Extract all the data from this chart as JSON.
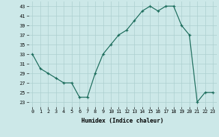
{
  "x": [
    0,
    1,
    2,
    3,
    4,
    5,
    6,
    7,
    8,
    9,
    10,
    11,
    12,
    13,
    14,
    15,
    16,
    17,
    18,
    19,
    20,
    21,
    22,
    23
  ],
  "y": [
    33,
    30,
    29,
    28,
    27,
    27,
    24,
    24,
    29,
    33,
    35,
    37,
    38,
    40,
    42,
    43,
    42,
    43,
    43,
    39,
    37,
    23,
    25,
    25
  ],
  "xlabel": "Humidex (Indice chaleur)",
  "xlim": [
    -0.5,
    23.5
  ],
  "ylim": [
    22,
    44
  ],
  "yticks": [
    23,
    25,
    27,
    29,
    31,
    33,
    35,
    37,
    39,
    41,
    43
  ],
  "xtick_labels": [
    "0",
    "1",
    "2",
    "3",
    "4",
    "5",
    "6",
    "7",
    "8",
    "9",
    "10",
    "11",
    "12",
    "13",
    "14",
    "15",
    "16",
    "17",
    "18",
    "19",
    "20",
    "21",
    "22",
    "23"
  ],
  "line_color": "#1a6b5a",
  "marker": "+",
  "bg_color": "#cce8e8",
  "grid_color": "#aacece",
  "font_family": "monospace"
}
